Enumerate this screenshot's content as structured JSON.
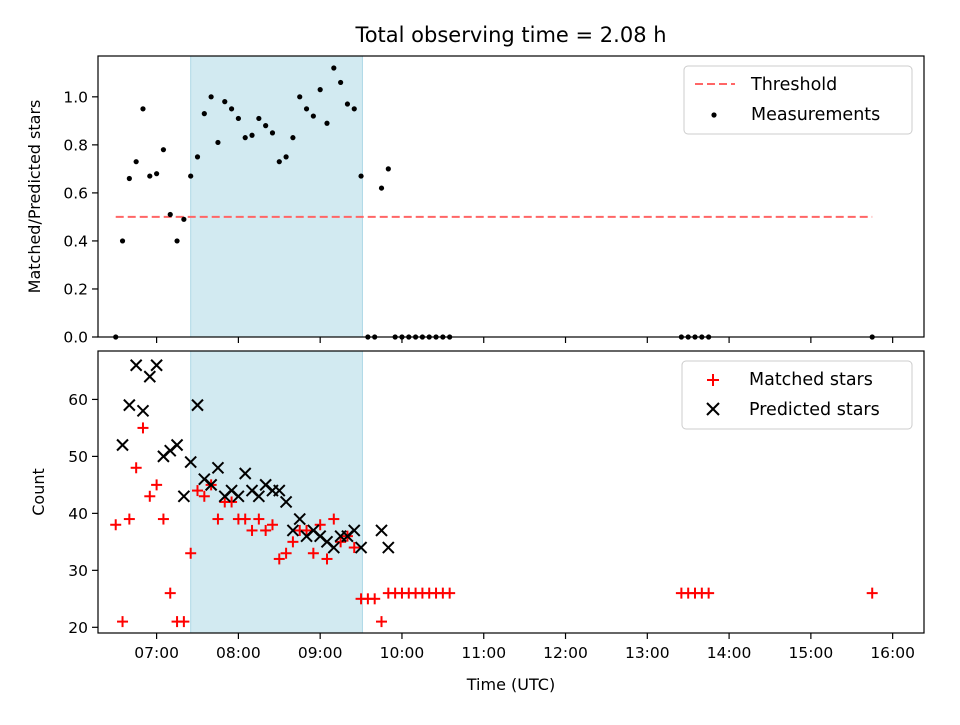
{
  "chart_data": [
    {
      "type": "scatter",
      "title": "Total observing time = 2.08 h",
      "xlabel": "",
      "ylabel": "Matched/Predicted stars",
      "xlim": [
        "06:17",
        "16:23"
      ],
      "ylim": [
        0,
        1.17
      ],
      "yticks": [
        "0.0",
        "0.2",
        "0.4",
        "0.6",
        "0.8",
        "1.0"
      ],
      "legend_position": "top-right",
      "shaded_region": [
        "07:25",
        "09:31"
      ],
      "shade_color": "#add8e6",
      "series": [
        {
          "name": "Threshold",
          "kind": "dashed-line",
          "color": "#ff6666",
          "x": [
            "06:30",
            "15:45"
          ],
          "y": [
            0.5,
            0.5
          ]
        },
        {
          "name": "Measurements",
          "kind": "points",
          "color": "#000000",
          "x": [
            "06:30",
            "06:35",
            "06:40",
            "06:45",
            "06:50",
            "06:55",
            "07:00",
            "07:05",
            "07:10",
            "07:15",
            "07:20",
            "07:25",
            "07:30",
            "07:35",
            "07:40",
            "07:45",
            "07:50",
            "07:55",
            "08:00",
            "08:05",
            "08:10",
            "08:15",
            "08:20",
            "08:25",
            "08:30",
            "08:35",
            "08:40",
            "08:45",
            "08:50",
            "08:55",
            "09:00",
            "09:05",
            "09:10",
            "09:15",
            "09:20",
            "09:25",
            "09:30",
            "09:35",
            "09:40",
            "09:45",
            "09:50",
            "09:55",
            "10:00",
            "10:05",
            "10:10",
            "10:15",
            "10:20",
            "10:25",
            "10:30",
            "10:35",
            "13:25",
            "13:30",
            "13:35",
            "13:40",
            "13:45",
            "15:45"
          ],
          "y": [
            0.0,
            0.4,
            0.66,
            0.73,
            0.95,
            0.67,
            0.68,
            0.78,
            0.51,
            0.4,
            0.49,
            0.67,
            0.75,
            0.93,
            1.0,
            0.81,
            0.98,
            0.95,
            0.91,
            0.83,
            0.84,
            0.91,
            0.88,
            0.85,
            0.73,
            0.75,
            0.83,
            1.0,
            0.95,
            0.92,
            1.03,
            0.89,
            1.12,
            1.06,
            0.97,
            0.95,
            0.67,
            0.0,
            0.0,
            0.62,
            0.7,
            0.0,
            0.0,
            0.0,
            0.0,
            0.0,
            0.0,
            0.0,
            0.0,
            0.0,
            0.0,
            0.0,
            0.0,
            0.0,
            0.0,
            0.0
          ]
        }
      ]
    },
    {
      "type": "scatter",
      "title": "",
      "xlabel": "Time (UTC)",
      "ylabel": "Count",
      "xlim": [
        "06:17",
        "16:23"
      ],
      "ylim": [
        19,
        68.5
      ],
      "yticks": [
        "20",
        "30",
        "40",
        "50",
        "60"
      ],
      "xticks": [
        "07:00",
        "08:00",
        "09:00",
        "10:00",
        "11:00",
        "12:00",
        "13:00",
        "14:00",
        "15:00",
        "16:00"
      ],
      "legend_position": "top-right",
      "shaded_region": [
        "07:25",
        "09:31"
      ],
      "shade_color": "#add8e6",
      "series": [
        {
          "name": "Matched stars",
          "marker": "plus",
          "color": "#ff0000",
          "x": [
            "06:30",
            "06:35",
            "06:40",
            "06:45",
            "06:50",
            "06:55",
            "07:00",
            "07:05",
            "07:10",
            "07:15",
            "07:20",
            "07:25",
            "07:30",
            "07:35",
            "07:40",
            "07:45",
            "07:50",
            "07:55",
            "08:00",
            "08:05",
            "08:10",
            "08:15",
            "08:20",
            "08:25",
            "08:30",
            "08:35",
            "08:40",
            "08:45",
            "08:50",
            "08:55",
            "09:00",
            "09:05",
            "09:10",
            "09:15",
            "09:20",
            "09:25",
            "09:30",
            "09:35",
            "09:40",
            "09:45",
            "09:50",
            "09:55",
            "10:00",
            "10:05",
            "10:10",
            "10:15",
            "10:20",
            "10:25",
            "10:30",
            "10:35",
            "13:25",
            "13:30",
            "13:35",
            "13:40",
            "13:45",
            "15:45"
          ],
          "y": [
            38,
            21,
            39,
            48,
            55,
            43,
            45,
            39,
            26,
            21,
            21,
            33,
            44,
            43,
            45,
            39,
            42,
            42,
            39,
            39,
            37,
            39,
            37,
            38,
            32,
            33,
            35,
            37,
            37,
            33,
            38,
            32,
            39,
            35,
            36,
            34,
            25,
            25,
            25,
            21,
            26,
            26,
            26,
            26,
            26,
            26,
            26,
            26,
            26,
            26,
            26,
            26,
            26,
            26,
            26,
            26
          ]
        },
        {
          "name": "Predicted stars",
          "marker": "x",
          "color": "#000000",
          "x": [
            "06:35",
            "06:40",
            "06:45",
            "06:50",
            "06:55",
            "07:00",
            "07:05",
            "07:10",
            "07:15",
            "07:20",
            "07:25",
            "07:30",
            "07:35",
            "07:40",
            "07:45",
            "07:50",
            "07:55",
            "08:00",
            "08:05",
            "08:10",
            "08:15",
            "08:20",
            "08:25",
            "08:30",
            "08:35",
            "08:40",
            "08:45",
            "08:50",
            "08:55",
            "09:00",
            "09:05",
            "09:10",
            "09:15",
            "09:20",
            "09:25",
            "09:30",
            "09:45",
            "09:50"
          ],
          "y": [
            52,
            59,
            66,
            58,
            64,
            66,
            50,
            51,
            52,
            43,
            49,
            59,
            46,
            45,
            48,
            43,
            44,
            43,
            47,
            44,
            43,
            45,
            44,
            44,
            42,
            37,
            39,
            36,
            37,
            36,
            35,
            34,
            36,
            36,
            37,
            34,
            37,
            34
          ]
        }
      ]
    }
  ]
}
